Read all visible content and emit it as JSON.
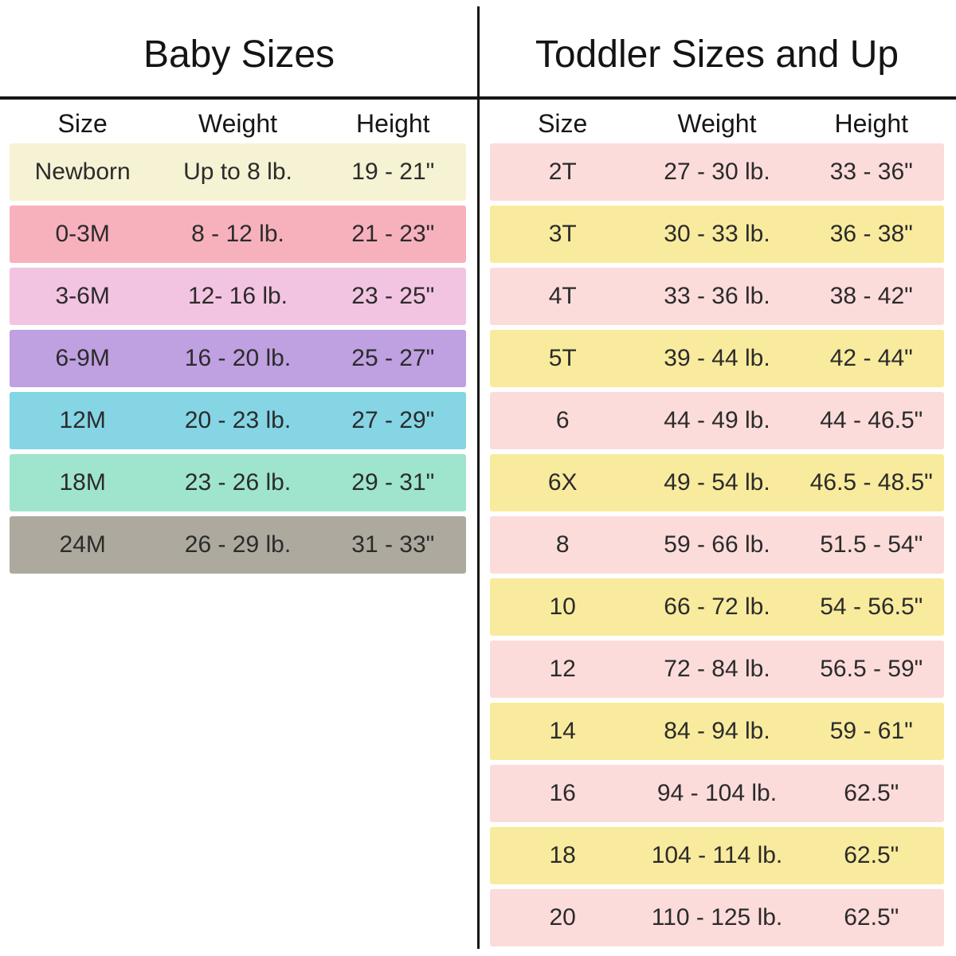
{
  "divider_color": "#161616",
  "chart_data": [
    {
      "type": "table",
      "title": "Baby Sizes",
      "columns": [
        "Size",
        "Weight",
        "Height"
      ],
      "rows": [
        {
          "size": "Newborn",
          "weight": "Up to 8 lb.",
          "height": "19 - 21\"",
          "row_color": "#f6f2d4"
        },
        {
          "size": "0-3M",
          "weight": "8 - 12 lb.",
          "height": "21 - 23\"",
          "row_color": "#f7b1bd"
        },
        {
          "size": "3-6M",
          "weight": "12- 16 lb.",
          "height": "23 - 25\"",
          "row_color": "#f3c4e1"
        },
        {
          "size": "6-9M",
          "weight": "16 - 20 lb.",
          "height": "25 - 27\"",
          "row_color": "#bfa0e1"
        },
        {
          "size": "12M",
          "weight": "20 - 23 lb.",
          "height": "27 - 29\"",
          "row_color": "#85d5e5"
        },
        {
          "size": "18M",
          "weight": "23 - 26 lb.",
          "height": "29 - 31\"",
          "row_color": "#9fe5cd"
        },
        {
          "size": "24M",
          "weight": "26 - 29 lb.",
          "height": "31 - 33\"",
          "row_color": "#aea99e"
        }
      ]
    },
    {
      "type": "table",
      "title": "Toddler Sizes and Up",
      "columns": [
        "Size",
        "Weight",
        "Height"
      ],
      "rows": [
        {
          "size": "2T",
          "weight": "27 - 30 lb.",
          "height": "33 - 36\"",
          "row_color": "#fcdcda"
        },
        {
          "size": "3T",
          "weight": "30 - 33 lb.",
          "height": "36 - 38\"",
          "row_color": "#f9eb9d"
        },
        {
          "size": "4T",
          "weight": "33 - 36 lb.",
          "height": "38 - 42\"",
          "row_color": "#fcdcda"
        },
        {
          "size": "5T",
          "weight": "39 - 44 lb.",
          "height": "42 - 44\"",
          "row_color": "#f9eb9d"
        },
        {
          "size": "6",
          "weight": "44 - 49 lb.",
          "height": "44 - 46.5\"",
          "row_color": "#fcdcda"
        },
        {
          "size": "6X",
          "weight": "49 - 54 lb.",
          "height": "46.5 - 48.5\"",
          "row_color": "#f9eb9d"
        },
        {
          "size": "8",
          "weight": "59 - 66 lb.",
          "height": "51.5 - 54\"",
          "row_color": "#fcdcda"
        },
        {
          "size": "10",
          "weight": "66 - 72 lb.",
          "height": "54 - 56.5\"",
          "row_color": "#f9eb9d"
        },
        {
          "size": "12",
          "weight": "72 - 84 lb.",
          "height": "56.5 - 59\"",
          "row_color": "#fcdcda"
        },
        {
          "size": "14",
          "weight": "84 - 94 lb.",
          "height": "59 - 61\"",
          "row_color": "#f9eb9d"
        },
        {
          "size": "16",
          "weight": "94 - 104 lb.",
          "height": "62.5\"",
          "row_color": "#fcdcda"
        },
        {
          "size": "18",
          "weight": "104 - 114 lb.",
          "height": "62.5\"",
          "row_color": "#f9eb9d"
        },
        {
          "size": "20",
          "weight": "110 - 125 lb.",
          "height": "62.5\"",
          "row_color": "#fcdcda"
        }
      ]
    }
  ]
}
